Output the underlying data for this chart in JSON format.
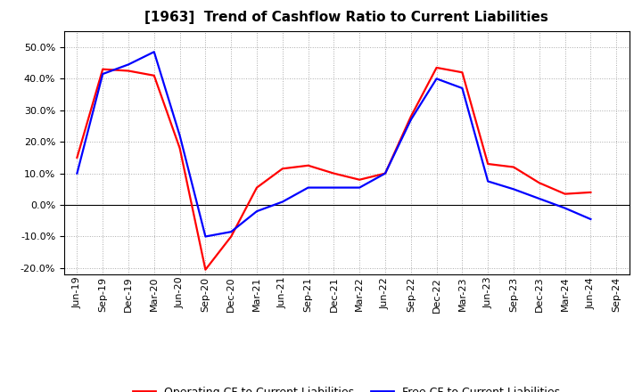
{
  "title": "[1963]  Trend of Cashflow Ratio to Current Liabilities",
  "x_labels": [
    "Jun-19",
    "Sep-19",
    "Dec-19",
    "Mar-20",
    "Jun-20",
    "Sep-20",
    "Dec-20",
    "Mar-21",
    "Jun-21",
    "Sep-21",
    "Dec-21",
    "Mar-22",
    "Jun-22",
    "Sep-22",
    "Dec-22",
    "Mar-23",
    "Jun-23",
    "Sep-23",
    "Dec-23",
    "Mar-24",
    "Jun-24",
    "Sep-24"
  ],
  "op_cf": [
    0.15,
    0.43,
    0.425,
    0.41,
    0.18,
    -0.205,
    -0.1,
    0.055,
    0.115,
    0.125,
    0.1,
    0.08,
    0.1,
    0.28,
    0.435,
    0.42,
    0.13,
    0.12,
    0.07,
    0.035,
    0.04,
    null
  ],
  "free_cf": [
    0.1,
    0.415,
    0.445,
    0.485,
    0.22,
    -0.1,
    -0.085,
    -0.02,
    0.01,
    0.055,
    0.055,
    0.055,
    0.1,
    0.27,
    0.4,
    0.37,
    0.075,
    0.05,
    0.02,
    -0.01,
    -0.045,
    null
  ],
  "ylim": [
    -0.22,
    0.55
  ],
  "yticks": [
    -0.2,
    -0.1,
    0.0,
    0.1,
    0.2,
    0.3,
    0.4,
    0.5
  ],
  "operating_color": "#FF0000",
  "free_color": "#0000FF",
  "background_color": "#FFFFFF",
  "grid_color": "#AAAAAA",
  "title_fontsize": 11,
  "legend_fontsize": 9,
  "tick_fontsize": 8
}
